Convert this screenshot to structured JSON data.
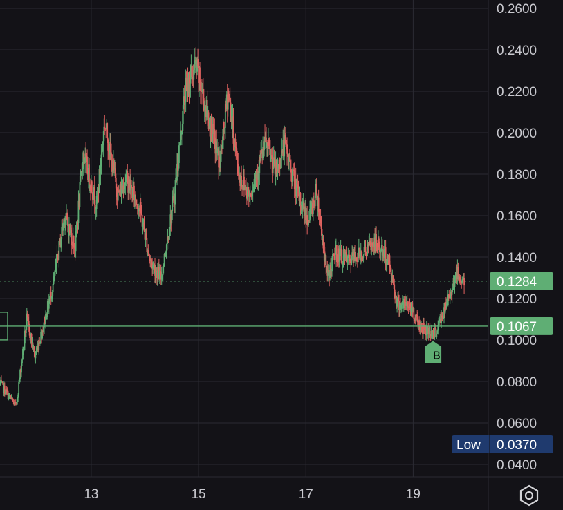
{
  "chart_data": {
    "type": "candlestick",
    "x_ticks": [
      "13",
      "15",
      "17",
      "19"
    ],
    "y_ticks": [
      "0.0600",
      "0.0800",
      "0.1000",
      "0.1200",
      "0.1400",
      "0.1600",
      "0.1800",
      "0.2000",
      "0.2200",
      "0.2400",
      "0.2600"
    ],
    "y_partial_bottom": "0.0400",
    "ylim": [
      0.034,
      0.264
    ],
    "xlim": [
      11.3,
      20.4
    ],
    "grid": true,
    "current_price": {
      "value": 0.1284,
      "label": "0.1284"
    },
    "level_line": {
      "value": 0.1067,
      "label": "0.1067"
    },
    "low": {
      "caption": "Low",
      "label": "0.0370",
      "value": 0.037
    },
    "marker": {
      "text": "B",
      "x": 19.37,
      "y": 0.1015
    },
    "colors": {
      "up": "#5fae74",
      "down": "#e0625f",
      "bg": "#131217",
      "grid": "#2b2b33",
      "low_badge": "#1f3a6e"
    },
    "anchors": [
      [
        11.3,
        0.079
      ],
      [
        11.6,
        0.068
      ],
      [
        11.8,
        0.11
      ],
      [
        11.95,
        0.092
      ],
      [
        12.1,
        0.106
      ],
      [
        12.3,
        0.128
      ],
      [
        12.5,
        0.16
      ],
      [
        12.7,
        0.145
      ],
      [
        12.85,
        0.19
      ],
      [
        13.1,
        0.165
      ],
      [
        13.25,
        0.205
      ],
      [
        13.5,
        0.17
      ],
      [
        13.65,
        0.178
      ],
      [
        13.9,
        0.164
      ],
      [
        14.1,
        0.138
      ],
      [
        14.3,
        0.13
      ],
      [
        14.55,
        0.17
      ],
      [
        14.75,
        0.22
      ],
      [
        14.95,
        0.232
      ],
      [
        15.2,
        0.205
      ],
      [
        15.4,
        0.185
      ],
      [
        15.55,
        0.22
      ],
      [
        15.75,
        0.18
      ],
      [
        15.95,
        0.17
      ],
      [
        16.25,
        0.195
      ],
      [
        16.45,
        0.18
      ],
      [
        16.6,
        0.195
      ],
      [
        16.85,
        0.17
      ],
      [
        17.05,
        0.158
      ],
      [
        17.2,
        0.172
      ],
      [
        17.4,
        0.13
      ],
      [
        17.55,
        0.142
      ],
      [
        17.8,
        0.138
      ],
      [
        18.1,
        0.143
      ],
      [
        18.3,
        0.147
      ],
      [
        18.55,
        0.138
      ],
      [
        18.7,
        0.118
      ],
      [
        18.95,
        0.116
      ],
      [
        19.15,
        0.106
      ],
      [
        19.4,
        0.103
      ],
      [
        19.6,
        0.115
      ],
      [
        19.8,
        0.132
      ],
      [
        19.95,
        0.1284
      ]
    ]
  }
}
